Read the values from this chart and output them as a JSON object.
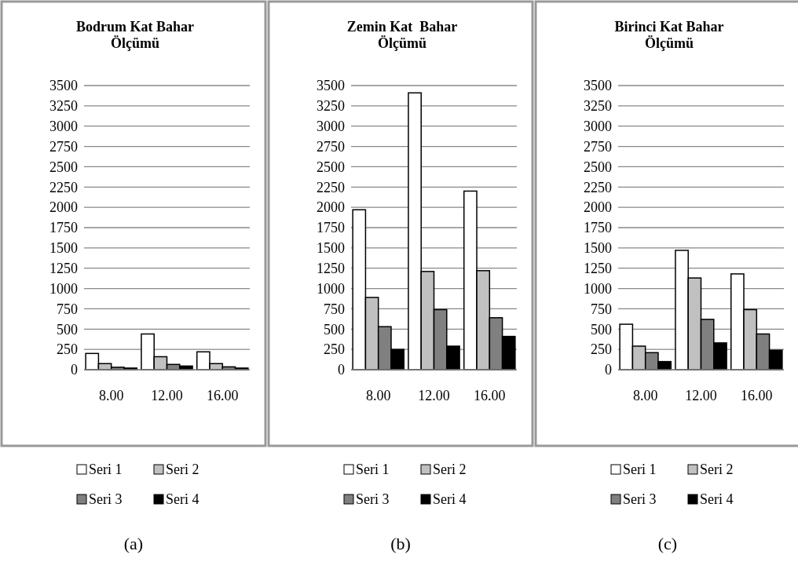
{
  "chart_data": [
    {
      "type": "bar",
      "title": "Bodrum Kat Bahar Ölçümü",
      "categories": [
        "8.00",
        "12.00",
        "16.00"
      ],
      "series": [
        {
          "name": "Seri 1",
          "color": "#ffffff",
          "values": [
            200,
            440,
            220
          ]
        },
        {
          "name": "Seri 2",
          "color": "#c0c0c0",
          "values": [
            75,
            160,
            75
          ]
        },
        {
          "name": "Seri 3",
          "color": "#808080",
          "values": [
            30,
            65,
            35
          ]
        },
        {
          "name": "Seri 4",
          "color": "#000000",
          "values": [
            20,
            45,
            20
          ]
        }
      ],
      "ylim": [
        0,
        3500
      ],
      "yticks": [
        0,
        250,
        500,
        750,
        1000,
        1250,
        1500,
        1750,
        2000,
        2250,
        2500,
        2750,
        3000,
        3250,
        3500
      ],
      "grid": "y",
      "legend": "bottom",
      "annotations": [
        "(a)"
      ]
    },
    {
      "type": "bar",
      "title": "Zemin Kat  Bahar Ölçümü",
      "categories": [
        "8.00",
        "12.00",
        "16.00"
      ],
      "series": [
        {
          "name": "Seri 1",
          "color": "#ffffff",
          "values": [
            1970,
            3410,
            2200
          ]
        },
        {
          "name": "Seri 2",
          "color": "#c0c0c0",
          "values": [
            890,
            1210,
            1220
          ]
        },
        {
          "name": "Seri 3",
          "color": "#808080",
          "values": [
            530,
            740,
            640
          ]
        },
        {
          "name": "Seri 4",
          "color": "#000000",
          "values": [
            250,
            290,
            410
          ]
        }
      ],
      "ylim": [
        0,
        3500
      ],
      "yticks": [
        0,
        250,
        500,
        750,
        1000,
        1250,
        1500,
        1750,
        2000,
        2250,
        2500,
        2750,
        3000,
        3250,
        3500
      ],
      "grid": "y",
      "legend": "bottom",
      "annotations": [
        "(b)"
      ]
    },
    {
      "type": "bar",
      "title": "Birinci Kat Bahar Ölçümü",
      "categories": [
        "8.00",
        "12.00",
        "16.00"
      ],
      "series": [
        {
          "name": "Seri 1",
          "color": "#ffffff",
          "values": [
            560,
            1470,
            1180
          ]
        },
        {
          "name": "Seri 2",
          "color": "#c0c0c0",
          "values": [
            290,
            1130,
            740
          ]
        },
        {
          "name": "Seri 3",
          "color": "#808080",
          "values": [
            210,
            620,
            440
          ]
        },
        {
          "name": "Seri 4",
          "color": "#000000",
          "values": [
            100,
            330,
            240
          ]
        }
      ],
      "ylim": [
        0,
        3500
      ],
      "yticks": [
        0,
        250,
        500,
        750,
        1000,
        1250,
        1500,
        1750,
        2000,
        2250,
        2500,
        2750,
        3000,
        3250,
        3500
      ],
      "grid": "y",
      "legend": "bottom",
      "annotations": [
        "(c)"
      ]
    }
  ]
}
